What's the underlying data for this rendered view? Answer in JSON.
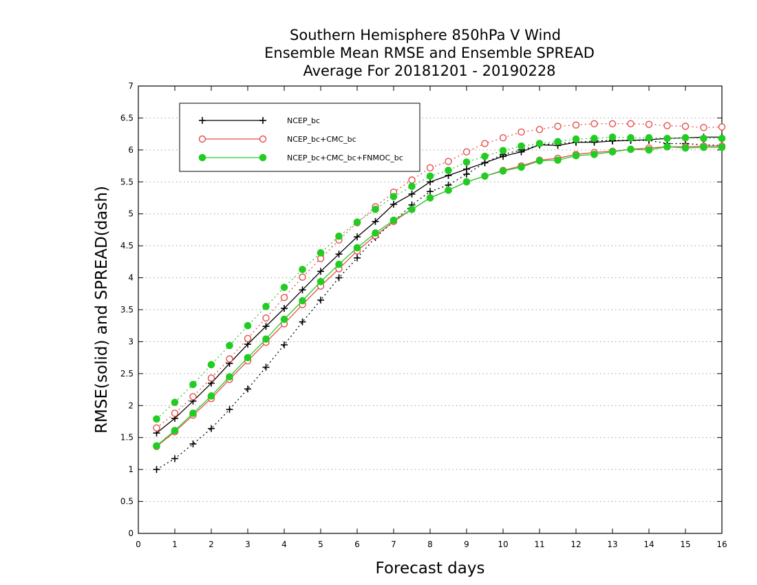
{
  "chart_data": {
    "type": "line",
    "title": [
      "Southern Hemisphere 850hPa V Wind",
      "Ensemble Mean RMSE and Ensemble SPREAD",
      "Average For 20181201 - 20190228"
    ],
    "xlabel": "Forecast days",
    "ylabel": "RMSE(solid) and SPREAD(dash)",
    "xlim": [
      0,
      16
    ],
    "ylim": [
      0,
      7
    ],
    "xticks": [
      "0",
      "1",
      "2",
      "3",
      "4",
      "5",
      "6",
      "7",
      "8",
      "9",
      "10",
      "11",
      "12",
      "13",
      "14",
      "15",
      "16"
    ],
    "yticks": [
      "0",
      "0.5",
      "1",
      "1.5",
      "2",
      "2.5",
      "3",
      "3.5",
      "4",
      "4.5",
      "5",
      "5.5",
      "6",
      "6.5",
      "7"
    ],
    "grid": "horizontal dotted",
    "legend_position": "top-left",
    "x": [
      0.5,
      1,
      1.5,
      2,
      2.5,
      3,
      3.5,
      4,
      4.5,
      5,
      5.5,
      6,
      6.5,
      7,
      7.5,
      8,
      8.5,
      9,
      9.5,
      10,
      10.5,
      11,
      11.5,
      12,
      12.5,
      13,
      13.5,
      14,
      14.5,
      15,
      15.5,
      16
    ],
    "series": [
      {
        "name": "NCEP_bc",
        "color": "#000000",
        "marker": "plus",
        "rmse": [
          1.57,
          1.8,
          2.07,
          2.35,
          2.66,
          2.96,
          3.24,
          3.52,
          3.81,
          4.1,
          4.37,
          4.64,
          4.88,
          5.15,
          5.31,
          5.5,
          5.6,
          5.7,
          5.8,
          5.9,
          5.97,
          6.08,
          6.07,
          6.12,
          6.12,
          6.14,
          6.15,
          6.16,
          6.18,
          6.19,
          6.2,
          6.2
        ],
        "spread": [
          1.0,
          1.17,
          1.4,
          1.64,
          1.94,
          2.26,
          2.6,
          2.95,
          3.31,
          3.65,
          4.0,
          4.31,
          4.63,
          4.88,
          5.14,
          5.35,
          5.45,
          5.62,
          5.8,
          5.93,
          6.0,
          6.08,
          6.1,
          6.12,
          6.14,
          6.15,
          6.15,
          6.15,
          6.1,
          6.1,
          6.08,
          6.07
        ]
      },
      {
        "name": "NCEP_bc+CMC_bc",
        "color": "#e84a4a",
        "marker": "open-circle",
        "rmse": [
          1.36,
          1.59,
          1.85,
          2.11,
          2.41,
          2.7,
          2.99,
          3.28,
          3.58,
          3.87,
          4.14,
          4.42,
          4.66,
          4.88,
          5.07,
          5.25,
          5.37,
          5.5,
          5.59,
          5.68,
          5.75,
          5.84,
          5.87,
          5.93,
          5.96,
          5.98,
          6.01,
          6.03,
          6.05,
          6.05,
          6.06,
          6.06
        ],
        "spread": [
          1.65,
          1.88,
          2.14,
          2.43,
          2.73,
          3.05,
          3.37,
          3.69,
          4.01,
          4.3,
          4.59,
          4.86,
          5.11,
          5.34,
          5.53,
          5.72,
          5.82,
          5.97,
          6.1,
          6.19,
          6.28,
          6.32,
          6.37,
          6.39,
          6.41,
          6.41,
          6.41,
          6.4,
          6.38,
          6.37,
          6.35,
          6.36
        ]
      },
      {
        "name": "NCEP_bc+CMC_bc+FNMOC_bc",
        "color": "#22cc22",
        "marker": "filled-circle",
        "rmse": [
          1.37,
          1.61,
          1.88,
          2.15,
          2.45,
          2.75,
          3.04,
          3.35,
          3.64,
          3.94,
          4.21,
          4.47,
          4.7,
          4.9,
          5.07,
          5.25,
          5.37,
          5.5,
          5.59,
          5.67,
          5.73,
          5.83,
          5.84,
          5.91,
          5.93,
          5.97,
          6.01,
          6.0,
          6.05,
          6.03,
          6.04,
          6.04
        ],
        "spread": [
          1.79,
          2.05,
          2.33,
          2.64,
          2.94,
          3.25,
          3.55,
          3.85,
          4.13,
          4.39,
          4.65,
          4.87,
          5.07,
          5.27,
          5.43,
          5.59,
          5.68,
          5.81,
          5.9,
          5.99,
          6.06,
          6.1,
          6.13,
          6.17,
          6.18,
          6.2,
          6.19,
          6.19,
          6.18,
          6.19,
          6.18,
          6.18
        ]
      }
    ]
  }
}
